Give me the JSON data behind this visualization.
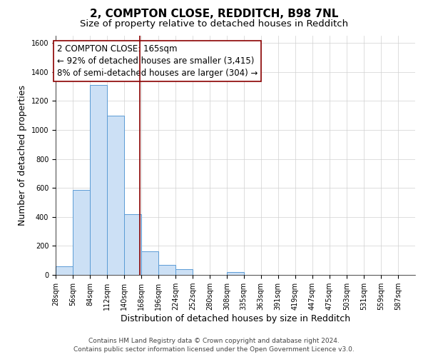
{
  "title": "2, COMPTON CLOSE, REDDITCH, B98 7NL",
  "subtitle": "Size of property relative to detached houses in Redditch",
  "xlabel": "Distribution of detached houses by size in Redditch",
  "ylabel": "Number of detached properties",
  "footer_line1": "Contains HM Land Registry data © Crown copyright and database right 2024.",
  "footer_line2": "Contains public sector information licensed under the Open Government Licence v3.0.",
  "annotation_line1": "2 COMPTON CLOSE: 165sqm",
  "annotation_line2": "← 92% of detached houses are smaller (3,415)",
  "annotation_line3": "8% of semi-detached houses are larger (304) →",
  "bar_edges": [
    28,
    56,
    84,
    112,
    140,
    168,
    196,
    224,
    252,
    280,
    308,
    335,
    363,
    391,
    419,
    447,
    475,
    503,
    531,
    559,
    587
  ],
  "bar_heights": [
    60,
    585,
    1310,
    1100,
    420,
    165,
    70,
    38,
    0,
    0,
    20,
    0,
    0,
    0,
    0,
    0,
    0,
    0,
    0,
    0
  ],
  "bin_width": 28,
  "bar_color": "#cce0f5",
  "bar_edge_color": "#5b9bd5",
  "vline_color": "#8b0000",
  "vline_x": 165,
  "ylim": [
    0,
    1650
  ],
  "yticks": [
    0,
    200,
    400,
    600,
    800,
    1000,
    1200,
    1400,
    1600
  ],
  "grid_color": "#d0d0d0",
  "background_color": "#ffffff",
  "annotation_box_color": "#ffffff",
  "annotation_box_edge": "#8b0000",
  "title_fontsize": 11,
  "subtitle_fontsize": 9.5,
  "tick_label_fontsize": 7,
  "axis_label_fontsize": 9,
  "annotation_fontsize": 8.5,
  "footer_fontsize": 6.5
}
